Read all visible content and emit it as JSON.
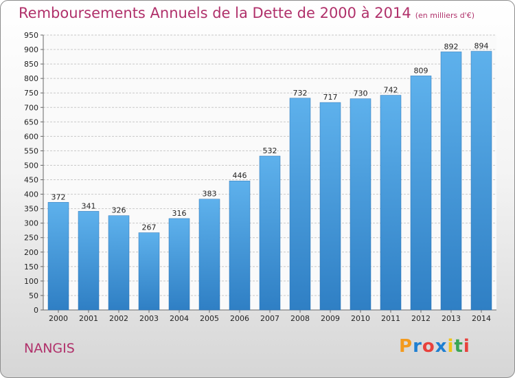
{
  "chart_data": {
    "type": "bar",
    "title": "Remboursements Annuels de la Dette de 2000 à 2014",
    "subtitle": "(en milliers d'€)",
    "categories": [
      "2000",
      "2001",
      "2002",
      "2003",
      "2004",
      "2005",
      "2006",
      "2007",
      "2008",
      "2009",
      "2010",
      "2011",
      "2012",
      "2013",
      "2014"
    ],
    "values": [
      372,
      341,
      326,
      267,
      316,
      383,
      446,
      532,
      732,
      717,
      730,
      742,
      809,
      892,
      894
    ],
    "xlabel": "",
    "ylabel": "",
    "ylim": [
      0,
      950
    ],
    "yticks": [
      0,
      50,
      100,
      150,
      200,
      250,
      300,
      350,
      400,
      450,
      500,
      550,
      600,
      650,
      700,
      750,
      800,
      850,
      900,
      950
    ],
    "grid": true,
    "bar_color": "#4ea3e4"
  },
  "commune": "NANGIS",
  "brand": {
    "letters": [
      "P",
      "r",
      "o",
      "x",
      "i",
      "t",
      "i"
    ],
    "colors": [
      "#f39a1e",
      "#1f7fd1",
      "#e8413c",
      "#1f7fd1",
      "#f0c419",
      "#3aa655",
      "#e8413c"
    ]
  }
}
